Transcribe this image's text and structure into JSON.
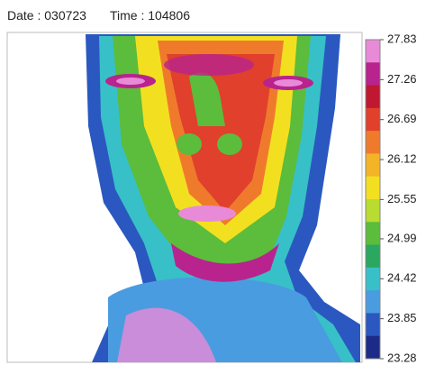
{
  "header": {
    "date": "Date : 030723",
    "time": "Time : 104806"
  },
  "colorbar": {
    "ticks": [
      27.83,
      27.26,
      26.69,
      26.12,
      25.55,
      24.99,
      24.42,
      23.85,
      23.28
    ],
    "colors": [
      "#e88ad8",
      "#b8238e",
      "#c01830",
      "#e0402c",
      "#f07a2c",
      "#f4b428",
      "#f2e020",
      "#b8dc30",
      "#5cbc3c",
      "#2aa860",
      "#38c0c8",
      "#4a9ce0",
      "#2a58c0",
      "#1c2a88"
    ]
  }
}
